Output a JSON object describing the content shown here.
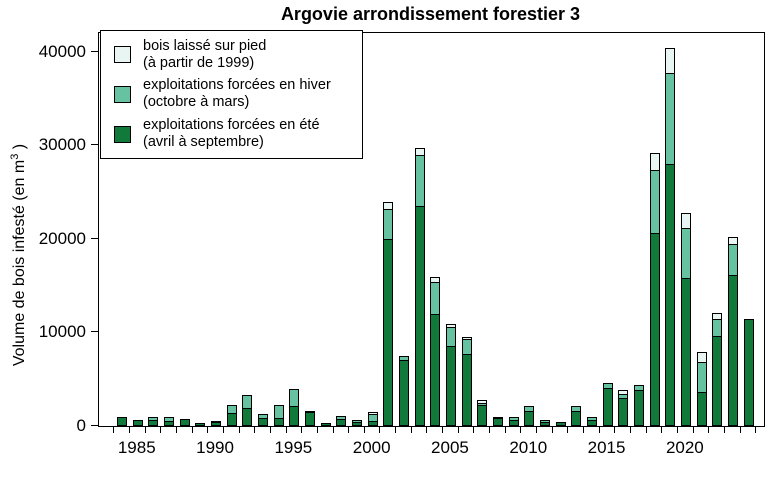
{
  "title": "Argovie arrondissement forestier 3",
  "y_axis": {
    "label_main": "Volume de bois infesté (en m",
    "label_sup": "3",
    "label_close": " )"
  },
  "chart_data": {
    "type": "bar",
    "stacked": true,
    "title": "Argovie arrondissement forestier 3",
    "ylabel": "Volume de bois infesté (en m3)",
    "xlabel": "",
    "ylim": [
      0,
      42000
    ],
    "yticks": [
      "0",
      "10000",
      "20000",
      "30000",
      "40000"
    ],
    "xtick_labels": [
      "1985",
      "1990",
      "1995",
      "2000",
      "2005",
      "2010",
      "2015",
      "2020"
    ],
    "grid": false,
    "legend_position": "top-left",
    "categories": [
      1984,
      1985,
      1986,
      1987,
      1988,
      1989,
      1990,
      1991,
      1992,
      1993,
      1994,
      1995,
      1996,
      1997,
      1998,
      1999,
      2000,
      2001,
      2002,
      2003,
      2004,
      2005,
      2006,
      2007,
      2008,
      2009,
      2010,
      2011,
      2012,
      2013,
      2014,
      2015,
      2016,
      2017,
      2018,
      2019,
      2020,
      2021,
      2022,
      2023,
      2024
    ],
    "series": [
      {
        "name": "exploitations forcées en été (avril à septembre)",
        "legend_lines": [
          "exploitations forcées en été",
          "(avril à septembre)"
        ],
        "color": "#11793a",
        "values": [
          1000,
          650,
          650,
          550,
          700,
          300,
          400,
          1400,
          1900,
          900,
          900,
          2100,
          1500,
          300,
          700,
          450,
          550,
          20000,
          7100,
          23500,
          12000,
          8600,
          7700,
          2200,
          900,
          600,
          1600,
          450,
          400,
          1600,
          600,
          4100,
          3000,
          3900,
          20600,
          28000,
          15800,
          3600,
          9600,
          16100,
          11400
        ]
      },
      {
        "name": "exploitations forcées en hiver (octobre à mars)",
        "legend_lines": [
          "exploitations forcées en hiver",
          "(octobre à mars)"
        ],
        "color": "#66c2a0",
        "values": [
          0,
          0,
          350,
          450,
          0,
          0,
          150,
          900,
          1350,
          450,
          1400,
          1800,
          150,
          0,
          350,
          250,
          700,
          3200,
          400,
          5500,
          3400,
          2000,
          1600,
          250,
          0,
          300,
          500,
          250,
          0,
          550,
          300,
          550,
          450,
          550,
          6800,
          9700,
          5400,
          3200,
          1800,
          3300,
          0
        ]
      },
      {
        "name": "bois laissé sur pied (à partir de 1999)",
        "legend_lines": [
          "bois laissé sur pied",
          "(à partir de 1999)"
        ],
        "color": "#e8f5f3",
        "values": [
          0,
          0,
          0,
          0,
          0,
          0,
          0,
          0,
          0,
          0,
          0,
          0,
          0,
          0,
          0,
          0,
          250,
          800,
          0,
          700,
          550,
          300,
          200,
          350,
          150,
          0,
          0,
          0,
          0,
          0,
          0,
          0,
          450,
          0,
          1800,
          2700,
          1600,
          1100,
          600,
          800,
          0
        ]
      }
    ],
    "legend_order": [
      2,
      1,
      0
    ],
    "border_color": "#000000"
  }
}
